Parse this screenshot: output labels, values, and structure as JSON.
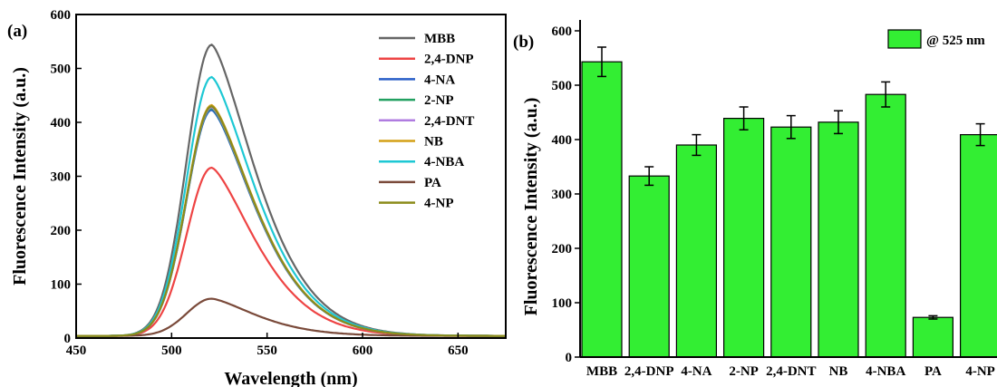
{
  "chart_data": [
    {
      "type": "line",
      "panel_label": "(a)",
      "xlabel": "Wavelength (nm)",
      "ylabel": "Fluorescence Intensity (a.u.)",
      "xlim": [
        450,
        675
      ],
      "ylim": [
        0,
        600
      ],
      "xticks": [
        450,
        500,
        550,
        600,
        650
      ],
      "yticks": [
        0,
        100,
        200,
        300,
        400,
        500,
        600
      ],
      "peak_wavelength": 521,
      "legend_position": "top-right",
      "series": [
        {
          "name": "MBB",
          "color": "#666666",
          "peak": 544
        },
        {
          "name": "2,4-DNP",
          "color": "#ee4444",
          "peak": 316
        },
        {
          "name": "4-NA",
          "color": "#2a5fc8",
          "peak": 423
        },
        {
          "name": "2-NP",
          "color": "#22a060",
          "peak": 426
        },
        {
          "name": "2,4-DNT",
          "color": "#b07ce0",
          "peak": 428
        },
        {
          "name": "NB",
          "color": "#d4a017",
          "peak": 432
        },
        {
          "name": "4-NBA",
          "color": "#1ec8d4",
          "peak": 484
        },
        {
          "name": "PA",
          "color": "#7a4a3a",
          "peak": 73
        },
        {
          "name": "4-NP",
          "color": "#8c8c1a",
          "peak": 430
        }
      ]
    },
    {
      "type": "bar",
      "panel_label": "(b)",
      "ylabel": "Fluorescence Intensity (a.u.)",
      "legend_label": "@ 525 nm",
      "legend_position": "top-right",
      "bar_color": "#33ee33",
      "ylim": [
        0,
        620
      ],
      "yticks": [
        0,
        100,
        200,
        300,
        400,
        500,
        600
      ],
      "categories": [
        "MBB",
        "2,4-DNP",
        "4-NA",
        "2-NP",
        "2,4-DNT",
        "NB",
        "4-NBA",
        "PA",
        "4-NP"
      ],
      "values": [
        543,
        333,
        390,
        439,
        423,
        432,
        483,
        73,
        409
      ],
      "errors": [
        27,
        17,
        19,
        21,
        21,
        21,
        23,
        3,
        20
      ]
    }
  ]
}
